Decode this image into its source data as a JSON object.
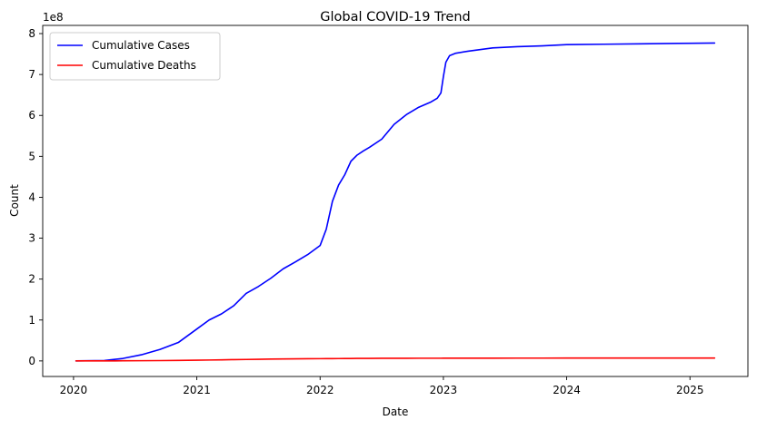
{
  "chart_data": {
    "type": "line",
    "title": "Global COVID-19 Trend",
    "xlabel": "Date",
    "ylabel": "Count",
    "y_scale_label": "1e8",
    "y_scale_factor": 100000000,
    "xlim": [
      2019.75,
      2025.47
    ],
    "ylim": [
      -0.38,
      8.2
    ],
    "x_ticks": [
      {
        "value": 2020,
        "label": "2020"
      },
      {
        "value": 2021,
        "label": "2021"
      },
      {
        "value": 2022,
        "label": "2022"
      },
      {
        "value": 2023,
        "label": "2023"
      },
      {
        "value": 2024,
        "label": "2024"
      },
      {
        "value": 2025,
        "label": "2025"
      }
    ],
    "y_ticks": [
      {
        "value": 0,
        "label": "0"
      },
      {
        "value": 1,
        "label": "1"
      },
      {
        "value": 2,
        "label": "2"
      },
      {
        "value": 3,
        "label": "3"
      },
      {
        "value": 4,
        "label": "4"
      },
      {
        "value": 5,
        "label": "5"
      },
      {
        "value": 6,
        "label": "6"
      },
      {
        "value": 7,
        "label": "7"
      },
      {
        "value": 8,
        "label": "8"
      }
    ],
    "grid": false,
    "legend_position": "top-left",
    "x": [
      2020.02,
      2020.25,
      2020.4,
      2020.55,
      2020.7,
      2020.85,
      2021.0,
      2021.1,
      2021.2,
      2021.3,
      2021.4,
      2021.5,
      2021.6,
      2021.7,
      2021.8,
      2021.9,
      2022.0,
      2022.05,
      2022.1,
      2022.15,
      2022.2,
      2022.25,
      2022.3,
      2022.35,
      2022.4,
      2022.5,
      2022.6,
      2022.7,
      2022.8,
      2022.9,
      2022.95,
      2022.98,
      2023.0,
      2023.02,
      2023.05,
      2023.1,
      2023.2,
      2023.4,
      2023.6,
      2023.8,
      2024.0,
      2024.3,
      2024.6,
      2024.9,
      2025.2
    ],
    "series": [
      {
        "name": "Cumulative Cases",
        "color": "#0000ff",
        "values": [
          0.0,
          0.01,
          0.06,
          0.15,
          0.28,
          0.45,
          0.78,
          1.0,
          1.15,
          1.35,
          1.65,
          1.82,
          2.02,
          2.25,
          2.42,
          2.6,
          2.82,
          3.22,
          3.9,
          4.3,
          4.55,
          4.88,
          5.03,
          5.13,
          5.22,
          5.42,
          5.78,
          6.02,
          6.2,
          6.33,
          6.42,
          6.55,
          6.95,
          7.3,
          7.46,
          7.52,
          7.57,
          7.65,
          7.68,
          7.7,
          7.73,
          7.74,
          7.75,
          7.76,
          7.77
        ]
      },
      {
        "name": "Cumulative Deaths",
        "color": "#ff0000",
        "values": [
          0.0,
          0.0,
          0.003,
          0.005,
          0.008,
          0.012,
          0.018,
          0.022,
          0.027,
          0.032,
          0.036,
          0.04,
          0.045,
          0.048,
          0.051,
          0.053,
          0.055,
          0.056,
          0.057,
          0.058,
          0.059,
          0.06,
          0.061,
          0.062,
          0.063,
          0.064,
          0.065,
          0.065,
          0.066,
          0.066,
          0.066,
          0.066,
          0.067,
          0.067,
          0.067,
          0.067,
          0.068,
          0.068,
          0.069,
          0.069,
          0.07,
          0.07,
          0.07,
          0.07,
          0.071
        ]
      }
    ]
  }
}
